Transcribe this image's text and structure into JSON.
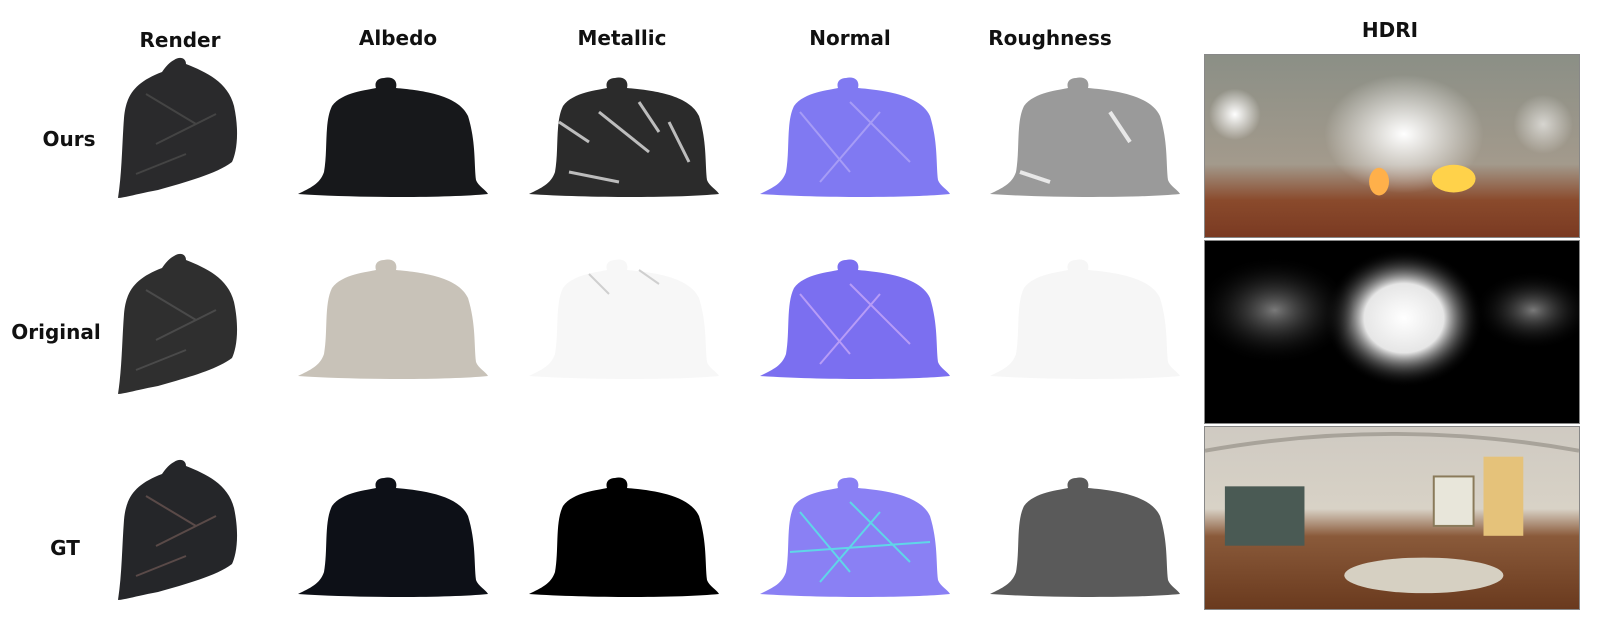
{
  "columns": {
    "render": "Render",
    "albedo": "Albedo",
    "metallic": "Metallic",
    "normal": "Normal",
    "roughness": "Roughness",
    "hdri": "HDRI"
  },
  "rows": {
    "ours": "Ours",
    "original": "Original",
    "gt": "GT"
  },
  "fills": {
    "ours": {
      "render": "#2a2a2c",
      "albedo": "#17181b",
      "metallic": "#2b2b2b",
      "normal": "#8079f2",
      "roughness": "#9a9a9a"
    },
    "original": {
      "render": "#2f2f2f",
      "albedo": "#c8c2b8",
      "metallic": "#f7f7f7",
      "normal": "#7b6ff0",
      "roughness": "#f6f6f6"
    },
    "gt": {
      "render": "#252629",
      "albedo": "#0d1017",
      "metallic": "#000000",
      "normal": "#8a80f4",
      "roughness": "#5a5a5a"
    }
  }
}
